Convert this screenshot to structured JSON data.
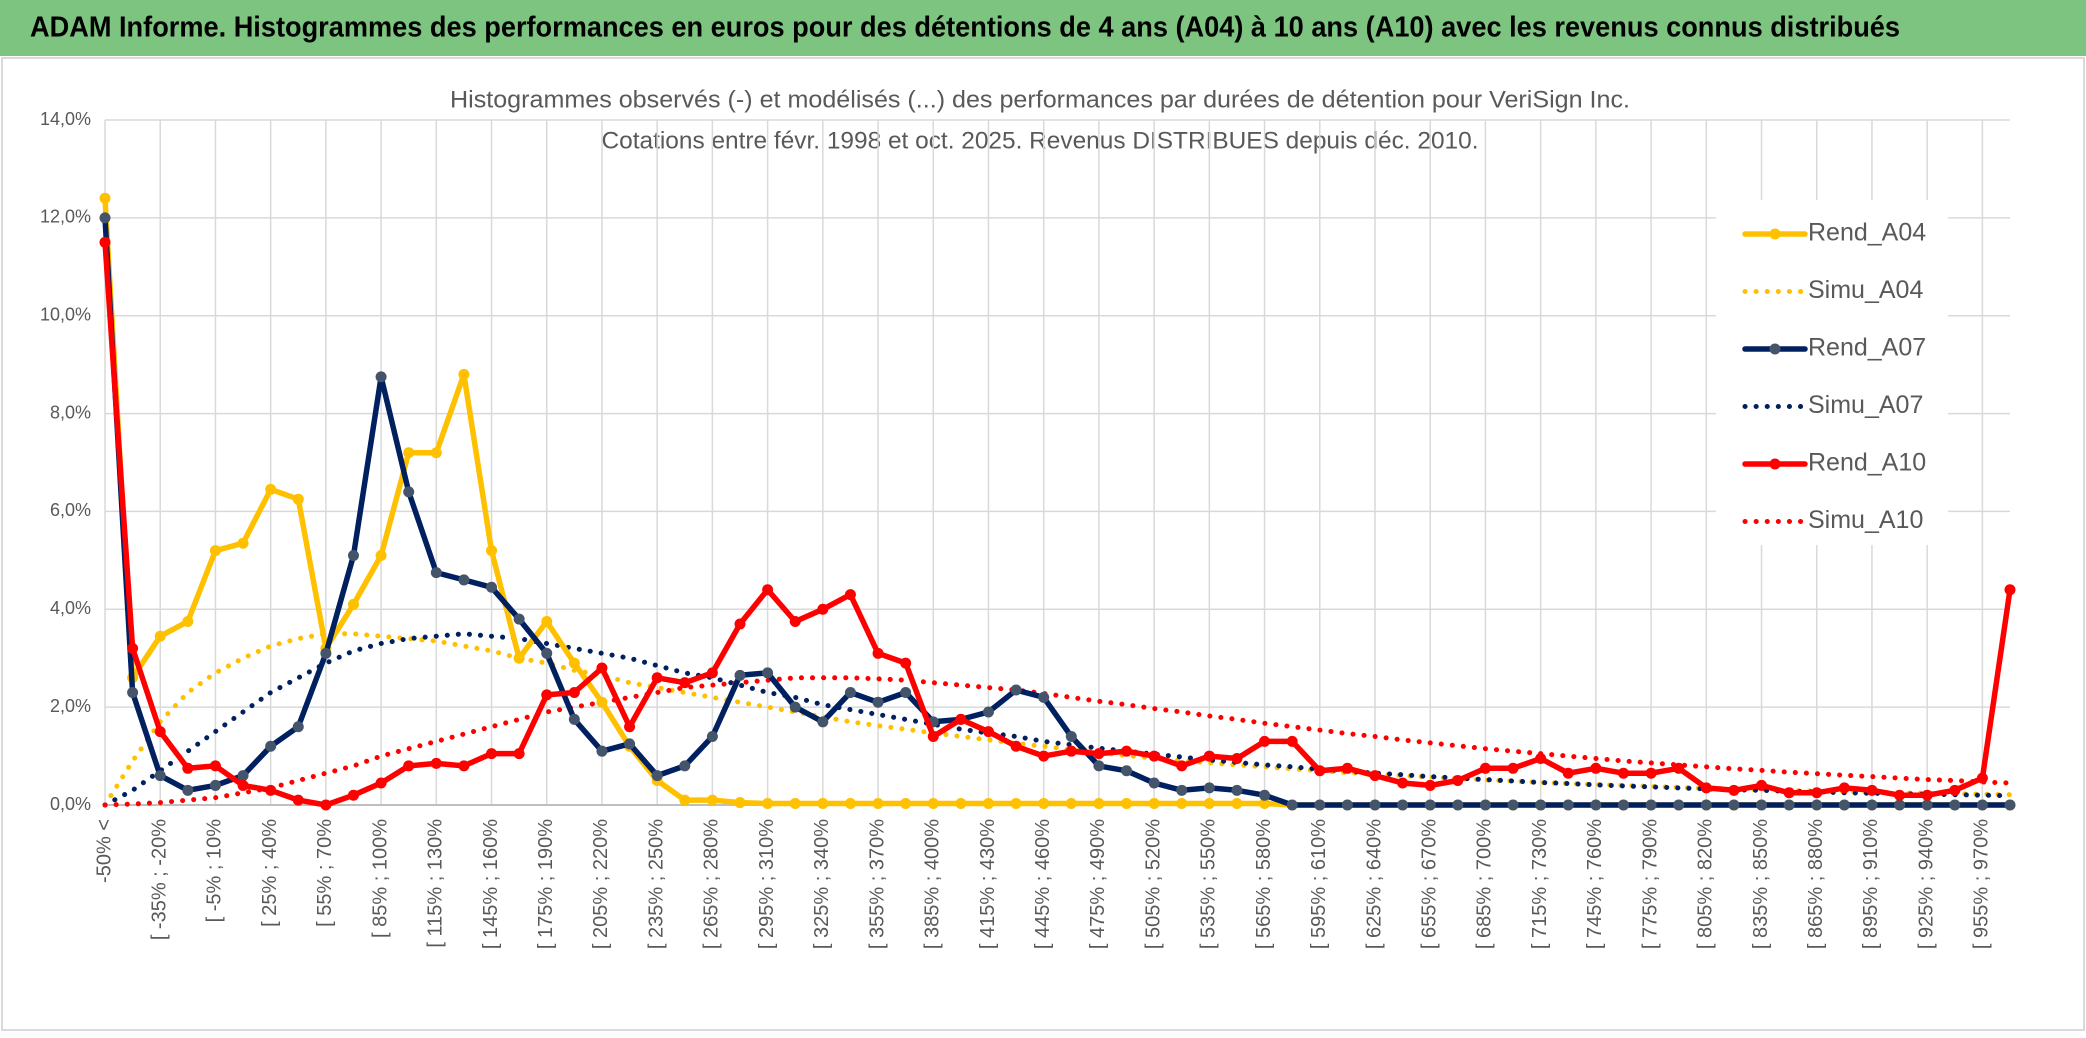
{
  "header": {
    "title": "ADAM Informe. Histogrammes des performances en euros pour des détentions de 4 ans (A04) à 10 ans (A10) avec les revenus connus distribués"
  },
  "chart_data": {
    "type": "line",
    "title": "Histogrammes observés (-) et modélisés (...) des performances par durées de détention pour VeriSign Inc.",
    "subtitle": "Cotations entre févr. 1998 et oct. 2025. Revenus DISTRIBUES depuis déc. 2010.",
    "categories": [
      "-50% <",
      null,
      "[ -35% ; -20%",
      null,
      "[ -5% ; 10%",
      null,
      "[ 25% ; 40%",
      null,
      "[ 55% ; 70%",
      null,
      "[ 85% ; 100%",
      null,
      "[ 115% ; 130%",
      null,
      "[ 145% ; 160%",
      null,
      "[ 175% ; 190%",
      null,
      "[ 205% ; 220%",
      null,
      "[ 235% ; 250%",
      null,
      "[ 265% ; 280%",
      null,
      "[ 295% ; 310%",
      null,
      "[ 325% ; 340%",
      null,
      "[ 355% ; 370%",
      null,
      "[ 385% ; 400%",
      null,
      "[ 415% ; 430%",
      null,
      "[ 445% ; 460%",
      null,
      "[ 475% ; 490%",
      null,
      "[ 505% ; 520%",
      null,
      "[ 535% ; 550%",
      null,
      "[ 565% ; 580%",
      null,
      "[ 595% ; 610%",
      null,
      "[ 625% ; 640%",
      null,
      "[ 655% ; 670%",
      null,
      "[ 685% ; 700%",
      null,
      "[ 715% ; 730%",
      null,
      "[ 745% ; 760%",
      null,
      "[ 775% ; 790%",
      null,
      "[ 805% ; 820%",
      null,
      "[ 835% ; 850%",
      null,
      "[ 865% ; 880%",
      null,
      "[ 895% ; 910%",
      null,
      "[ 925% ; 940%",
      null,
      "[ 955% ; 970%",
      null
    ],
    "series": [
      {
        "name": "Rend_A04",
        "color": "#ffc000",
        "style": "solid",
        "markers": true,
        "values": [
          12.4,
          2.6,
          3.45,
          3.75,
          5.2,
          5.35,
          6.45,
          6.25,
          3.2,
          4.1,
          5.1,
          7.2,
          7.2,
          8.8,
          5.2,
          3.0,
          3.75,
          2.9,
          2.1,
          1.2,
          0.5,
          0.1,
          0.1,
          0.05,
          0.03,
          0.03,
          0.03,
          0.03,
          0.03,
          0.03,
          0.03,
          0.03,
          0.03,
          0.03,
          0.03,
          0.03,
          0.03,
          0.03,
          0.03,
          0.03,
          0.03,
          0.03,
          0.03,
          0,
          0,
          0,
          0,
          0,
          0,
          0,
          0,
          0,
          0,
          0,
          0,
          0,
          0,
          0,
          0,
          0,
          0,
          0,
          0,
          0,
          0,
          0,
          0,
          0,
          0,
          0
        ]
      },
      {
        "name": "Simu_A04",
        "color": "#ffc000",
        "style": "dotted",
        "markers": false,
        "values": [
          0,
          0.9,
          1.7,
          2.3,
          2.7,
          3.0,
          3.25,
          3.4,
          3.5,
          3.5,
          3.45,
          3.4,
          3.35,
          3.25,
          3.15,
          3.0,
          2.9,
          2.75,
          2.65,
          2.5,
          2.4,
          2.3,
          2.2,
          2.1,
          2.0,
          1.9,
          1.8,
          1.7,
          1.62,
          1.55,
          1.47,
          1.4,
          1.33,
          1.26,
          1.2,
          1.13,
          1.07,
          1.01,
          0.96,
          0.91,
          0.86,
          0.82,
          0.78,
          0.74,
          0.7,
          0.66,
          0.63,
          0.6,
          0.57,
          0.54,
          0.51,
          0.49,
          0.46,
          0.44,
          0.42,
          0.4,
          0.38,
          0.36,
          0.34,
          0.33,
          0.31,
          0.3,
          0.28,
          0.27,
          0.26,
          0.25,
          0.24,
          0.23,
          0.22,
          0.21
        ]
      },
      {
        "name": "Rend_A07",
        "color": "#002060",
        "style": "solid",
        "markers": true,
        "values": [
          12.0,
          2.3,
          0.6,
          0.3,
          0.4,
          0.6,
          1.2,
          1.6,
          3.1,
          5.1,
          8.75,
          6.4,
          4.75,
          4.6,
          4.45,
          3.8,
          3.1,
          1.75,
          1.1,
          1.25,
          0.6,
          0.8,
          1.4,
          2.65,
          2.7,
          2.0,
          1.7,
          2.3,
          2.1,
          2.3,
          1.7,
          1.75,
          1.9,
          2.35,
          2.2,
          1.4,
          0.8,
          0.7,
          0.45,
          0.3,
          0.35,
          0.3,
          0.2,
          0,
          0,
          0,
          0,
          0,
          0,
          0,
          0,
          0,
          0,
          0,
          0,
          0,
          0,
          0,
          0,
          0,
          0,
          0,
          0,
          0,
          0,
          0,
          0,
          0,
          0,
          0
        ]
      },
      {
        "name": "Simu_A07",
        "color": "#002060",
        "style": "dotted",
        "markers": false,
        "values": [
          0,
          0.3,
          0.7,
          1.1,
          1.5,
          1.9,
          2.3,
          2.6,
          2.9,
          3.15,
          3.3,
          3.4,
          3.45,
          3.5,
          3.45,
          3.4,
          3.3,
          3.2,
          3.1,
          3.0,
          2.85,
          2.7,
          2.6,
          2.45,
          2.3,
          2.2,
          2.05,
          1.95,
          1.85,
          1.75,
          1.65,
          1.55,
          1.47,
          1.4,
          1.3,
          1.23,
          1.16,
          1.1,
          1.04,
          0.98,
          0.92,
          0.87,
          0.82,
          0.78,
          0.73,
          0.69,
          0.65,
          0.62,
          0.58,
          0.55,
          0.52,
          0.49,
          0.46,
          0.44,
          0.41,
          0.39,
          0.37,
          0.35,
          0.33,
          0.31,
          0.3,
          0.28,
          0.27,
          0.25,
          0.24,
          0.23,
          0.22,
          0.21,
          0.2,
          0.19
        ]
      },
      {
        "name": "Rend_A10",
        "color": "#ff0000",
        "style": "solid",
        "markers": true,
        "values": [
          11.5,
          3.2,
          1.5,
          0.75,
          0.8,
          0.4,
          0.3,
          0.1,
          0.0,
          0.2,
          0.45,
          0.8,
          0.85,
          0.8,
          1.05,
          1.05,
          2.25,
          2.3,
          2.8,
          1.6,
          2.6,
          2.5,
          2.7,
          3.7,
          4.4,
          3.75,
          4.0,
          4.3,
          3.1,
          2.9,
          1.4,
          1.75,
          1.5,
          1.2,
          1.0,
          1.1,
          1.05,
          1.1,
          1.0,
          0.8,
          1.0,
          0.95,
          1.3,
          1.3,
          0.7,
          0.75,
          0.6,
          0.45,
          0.4,
          0.5,
          0.75,
          0.75,
          0.95,
          0.65,
          0.75,
          0.65,
          0.65,
          0.75,
          0.35,
          0.3,
          0.4,
          0.25,
          0.25,
          0.35,
          0.3,
          0.2,
          0.2,
          0.3,
          0.55,
          4.4
        ]
      },
      {
        "name": "Simu_A10",
        "color": "#ff0000",
        "style": "dotted",
        "markers": false,
        "values": [
          0,
          0.02,
          0.05,
          0.1,
          0.15,
          0.25,
          0.35,
          0.5,
          0.65,
          0.8,
          1.0,
          1.15,
          1.3,
          1.45,
          1.6,
          1.75,
          1.9,
          2.0,
          2.1,
          2.2,
          2.3,
          2.4,
          2.45,
          2.5,
          2.55,
          2.6,
          2.6,
          2.6,
          2.58,
          2.55,
          2.5,
          2.45,
          2.4,
          2.35,
          2.28,
          2.2,
          2.12,
          2.05,
          1.97,
          1.9,
          1.82,
          1.75,
          1.67,
          1.6,
          1.53,
          1.46,
          1.4,
          1.33,
          1.27,
          1.21,
          1.15,
          1.1,
          1.05,
          1.0,
          0.95,
          0.9,
          0.86,
          0.82,
          0.78,
          0.74,
          0.71,
          0.67,
          0.64,
          0.61,
          0.58,
          0.55,
          0.52,
          0.5,
          0.47,
          0.45
        ]
      }
    ],
    "ylim": [
      0,
      14
    ],
    "yticks": [
      {
        "value": 0,
        "label": "0,0%"
      },
      {
        "value": 2,
        "label": "2,0%"
      },
      {
        "value": 4,
        "label": "4,0%"
      },
      {
        "value": 6,
        "label": "6,0%"
      },
      {
        "value": 8,
        "label": "8,0%"
      },
      {
        "value": 10,
        "label": "10,0%"
      },
      {
        "value": 12,
        "label": "12,0%"
      },
      {
        "value": 14,
        "label": "14,0%"
      }
    ],
    "grid": true,
    "legend": "right"
  }
}
